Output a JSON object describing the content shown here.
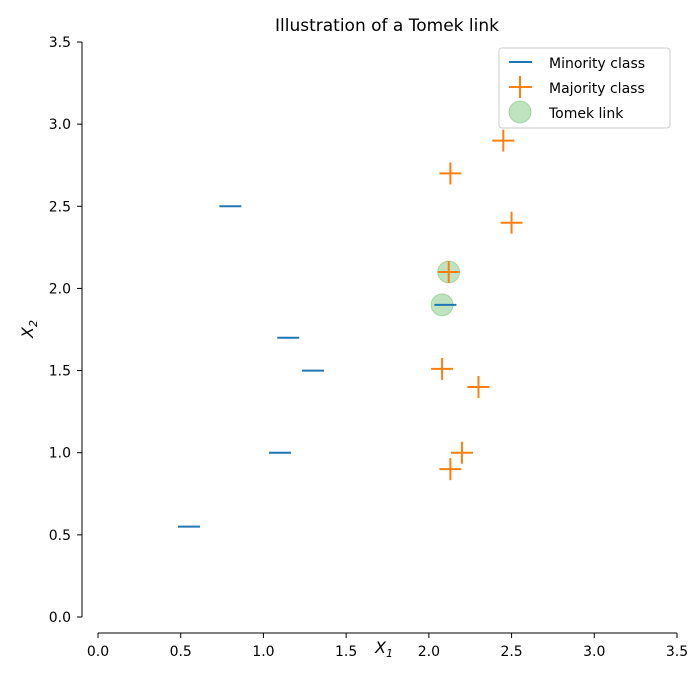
{
  "chart_data": {
    "type": "scatter",
    "title": "Illustration of a Tomek link",
    "xlabel_main": "X",
    "xlabel_sub": "1",
    "ylabel_main": "X",
    "ylabel_sub": "2",
    "xlim": [
      0.0,
      3.5
    ],
    "ylim": [
      0.0,
      3.5
    ],
    "x_ticks": [
      "0.0",
      "0.5",
      "1.0",
      "1.5",
      "2.0",
      "2.5",
      "3.0",
      "3.5"
    ],
    "y_ticks": [
      "0.0",
      "0.5",
      "1.0",
      "1.5",
      "2.0",
      "2.5",
      "3.0",
      "3.5"
    ],
    "grid": false,
    "legend_placement": "top-right",
    "series": [
      {
        "name": "Minority class",
        "marker": "hline",
        "color": "#1f77b4",
        "points": [
          [
            0.8,
            2.5
          ],
          [
            1.15,
            1.7
          ],
          [
            1.3,
            1.5
          ],
          [
            1.1,
            1.0
          ],
          [
            0.55,
            0.55
          ],
          [
            2.1,
            1.9
          ]
        ]
      },
      {
        "name": "Majority class",
        "marker": "plus",
        "color": "#ff7f0e",
        "points": [
          [
            2.45,
            2.9
          ],
          [
            2.13,
            2.7
          ],
          [
            2.5,
            2.4
          ],
          [
            2.12,
            2.1
          ],
          [
            2.08,
            1.51
          ],
          [
            2.3,
            1.4
          ],
          [
            2.2,
            1.0
          ],
          [
            2.13,
            0.9
          ]
        ]
      },
      {
        "name": "Tomek link",
        "marker": "circle",
        "color": "#2ca02c",
        "points": [
          [
            2.12,
            2.1
          ],
          [
            2.08,
            1.9
          ]
        ]
      }
    ]
  }
}
